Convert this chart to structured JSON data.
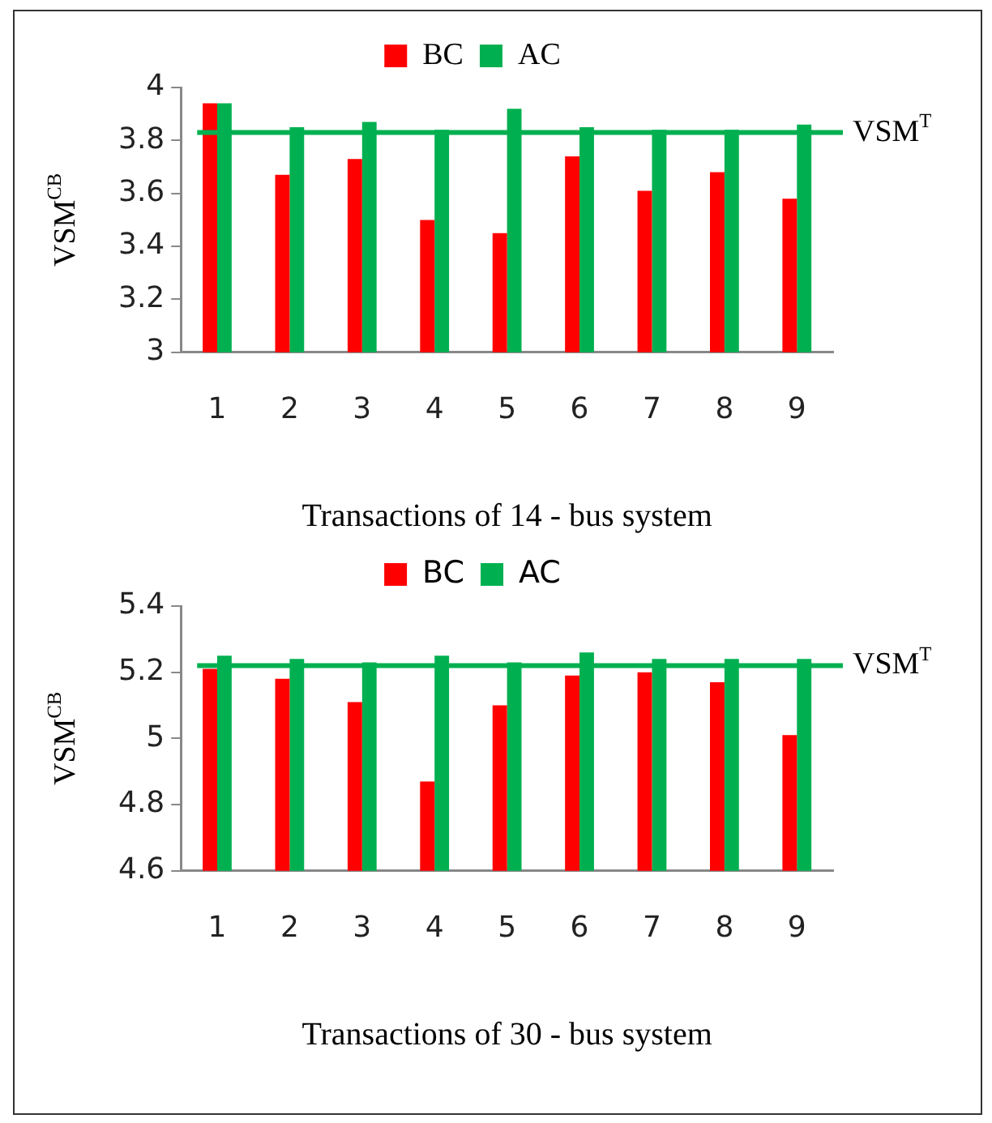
{
  "chart_data": [
    {
      "type": "bar",
      "xlabel": "Transactions of 14 - bus system",
      "ylabel": "VSM$^{CB}$",
      "categories": [
        "1",
        "2",
        "3",
        "4",
        "5",
        "6",
        "7",
        "8",
        "9"
      ],
      "series": [
        {
          "name": "BC",
          "color": "#ff0000",
          "values": [
            3.94,
            3.67,
            3.73,
            3.5,
            3.45,
            3.74,
            3.61,
            3.68,
            3.58
          ]
        },
        {
          "name": "AC",
          "color": "#00b050",
          "values": [
            3.94,
            3.85,
            3.87,
            3.84,
            3.92,
            3.85,
            3.84,
            3.84,
            3.86
          ]
        }
      ],
      "ylim": [
        3,
        4
      ],
      "yticks": [
        3,
        3.2,
        3.4,
        3.6,
        3.8,
        4
      ],
      "ref_lines": [
        {
          "axis": "y",
          "value": 3.83,
          "label": "VSM$^{T}$",
          "color": "#00b050"
        }
      ],
      "legend": "top",
      "grid": false
    },
    {
      "type": "bar",
      "xlabel": "Transactions of 30 - bus system",
      "ylabel": "VSM$^{CB}$",
      "categories": [
        "1",
        "2",
        "3",
        "4",
        "5",
        "6",
        "7",
        "8",
        "9"
      ],
      "series": [
        {
          "name": "BC",
          "color": "#ff0000",
          "values": [
            5.21,
            5.18,
            5.11,
            4.87,
            5.1,
            5.19,
            5.2,
            5.17,
            5.01
          ]
        },
        {
          "name": "AC",
          "color": "#00b050",
          "values": [
            5.25,
            5.24,
            5.23,
            5.25,
            5.23,
            5.26,
            5.24,
            5.24,
            5.24
          ]
        }
      ],
      "ylim": [
        4.6,
        5.4
      ],
      "yticks": [
        4.6,
        4.8,
        5,
        5.2,
        5.4
      ],
      "ref_lines": [
        {
          "axis": "y",
          "value": 5.22,
          "label": "VSM$^{T}$",
          "color": "#00b050"
        }
      ],
      "legend": "top",
      "grid": false
    }
  ]
}
